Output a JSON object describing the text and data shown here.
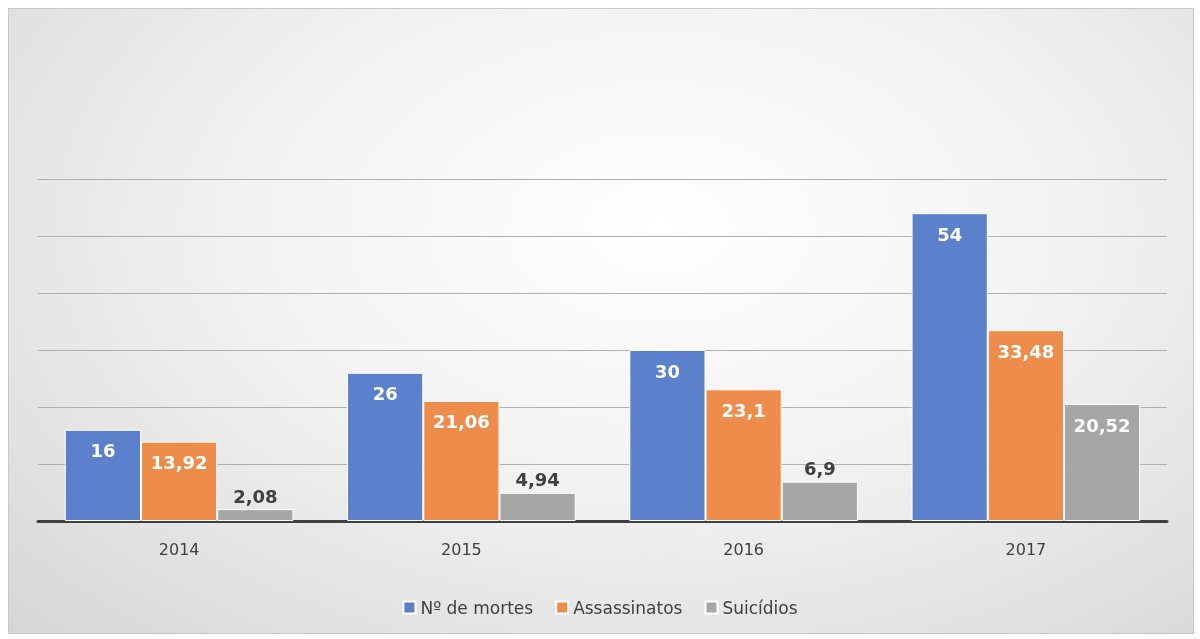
{
  "chart_data": {
    "type": "bar",
    "categories": [
      "2014",
      "2015",
      "2016",
      "2017"
    ],
    "series": [
      {
        "name": "Nº de mortes",
        "color": "#5b80cc",
        "values": [
          16,
          26,
          30,
          54
        ],
        "value_labels": [
          "16",
          "26",
          "30",
          "54"
        ]
      },
      {
        "name": "Assassinatos",
        "color": "#ee8d4b",
        "values": [
          13.92,
          21.06,
          23.1,
          33.48
        ],
        "value_labels": [
          "13,92",
          "21,06",
          "23,1",
          "33,48"
        ]
      },
      {
        "name": "Suicídios",
        "color": "#a6a6a6",
        "values": [
          2.08,
          4.94,
          6.9,
          20.52
        ],
        "value_labels": [
          "2,08",
          "4,94",
          "6,9",
          "20,52"
        ]
      }
    ],
    "ylim": [
      0,
      60
    ],
    "yticks": [
      {
        "value": 0,
        "label": null
      },
      {
        "value": 10,
        "label": null
      },
      {
        "value": 20,
        "label": null
      },
      {
        "value": 30,
        "label": null
      },
      {
        "value": 40,
        "label": null
      },
      {
        "value": 50,
        "label": null
      },
      {
        "value": 60,
        "label": null
      }
    ],
    "tick_labels": "x",
    "grid": "y",
    "legend": "bottom"
  }
}
